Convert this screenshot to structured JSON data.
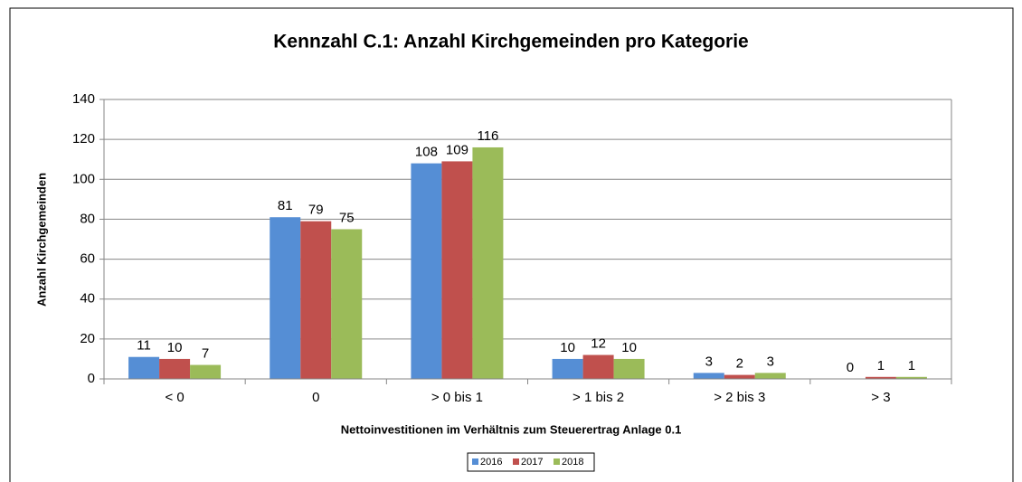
{
  "chart_data": {
    "type": "bar",
    "title": "Kennzahl C.1: Anzahl Kirchgemeinden pro Kategorie",
    "x_label": "Nettoinvestitionen  im Verhältnis zum Steuerertrag Anlage 0.1",
    "y_label": "Anzahl Kirchgemeinden",
    "categories": [
      "< 0",
      "0",
      "> 0 bis 1",
      "> 1 bis 2",
      "> 2 bis 3",
      "> 3"
    ],
    "series": [
      {
        "name": "2016",
        "color": "#558ed5",
        "values": [
          11,
          81,
          108,
          10,
          3,
          0
        ]
      },
      {
        "name": "2017",
        "color": "#c0504d",
        "values": [
          10,
          79,
          109,
          12,
          2,
          1
        ]
      },
      {
        "name": "2018",
        "color": "#9bbb59",
        "values": [
          7,
          75,
          116,
          10,
          3,
          1
        ]
      }
    ],
    "ylim": [
      0,
      140
    ],
    "yticks": [
      0,
      20,
      40,
      60,
      80,
      100,
      120,
      140
    ],
    "grid": true,
    "legend": "bottom"
  }
}
